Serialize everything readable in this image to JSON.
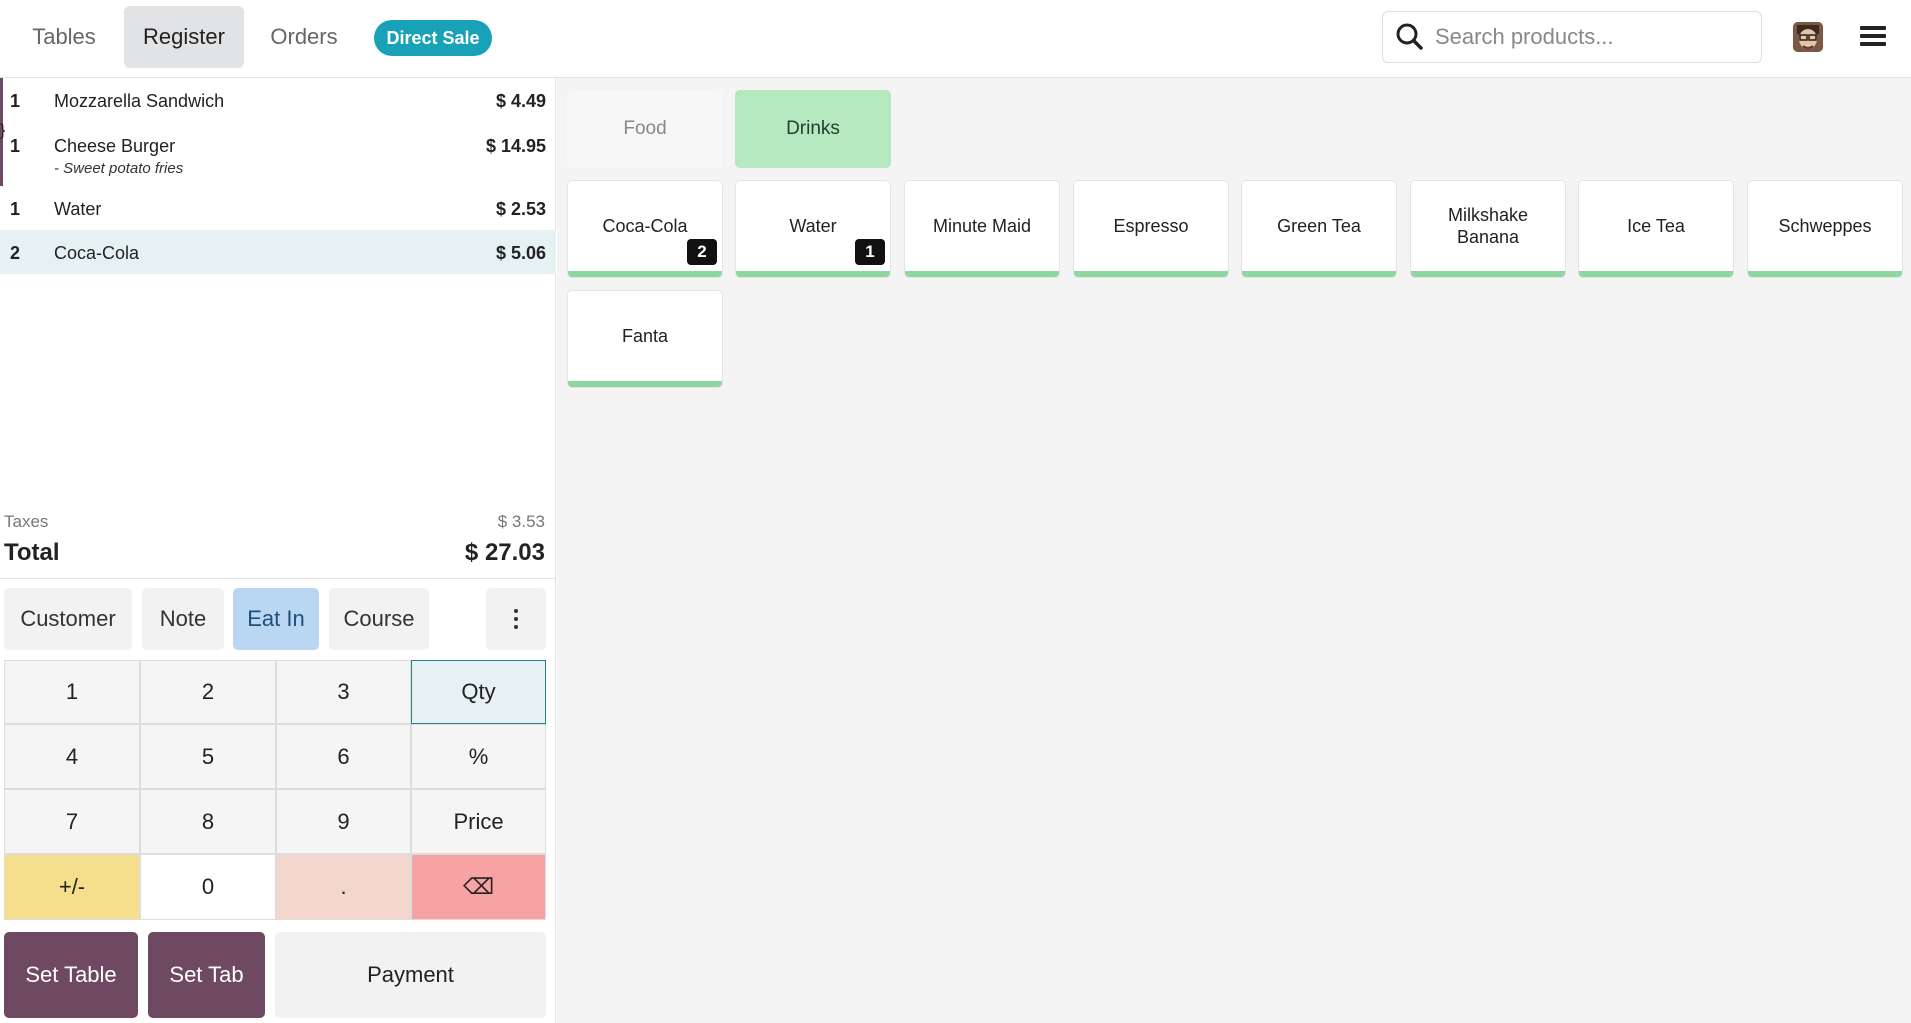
{
  "header": {
    "tabs": [
      {
        "label": "Tables"
      },
      {
        "label": "Register"
      },
      {
        "label": "Orders"
      }
    ],
    "direct_sale": "Direct Sale",
    "search_placeholder": "Search products...",
    "icons": {
      "search": "search-icon",
      "avatar": "avatar",
      "menu": "hamburger-menu-icon"
    }
  },
  "order": {
    "lines": [
      {
        "qty": "1",
        "name": "Mozzarella Sandwich",
        "price": "$ 4.49",
        "note": ""
      },
      {
        "qty": "1",
        "name": "Cheese Burger",
        "price": "$ 14.95",
        "note": "- Sweet potato fries"
      },
      {
        "qty": "1",
        "name": "Water",
        "price": "$ 2.53",
        "note": ""
      },
      {
        "qty": "2",
        "name": "Coca-Cola",
        "price": "$ 5.06",
        "note": ""
      }
    ],
    "taxes_label": "Taxes",
    "taxes_value": "$ 3.53",
    "total_label": "Total",
    "total_value": "$ 27.03"
  },
  "controls": {
    "customer": "Customer",
    "note": "Note",
    "eat_in": "Eat In",
    "course": "Course"
  },
  "numpad": {
    "keys": [
      "1",
      "2",
      "3",
      "Qty",
      "4",
      "5",
      "6",
      "%",
      "7",
      "8",
      "9",
      "Price",
      "+/-",
      "0",
      ".",
      "⌫"
    ]
  },
  "actions": {
    "set_table": "Set Table",
    "set_tab": "Set Tab",
    "payment": "Payment"
  },
  "categories": [
    {
      "label": "Food"
    },
    {
      "label": "Drinks"
    }
  ],
  "products": [
    {
      "name": "Coca-Cola",
      "badge": "2"
    },
    {
      "name": "Water",
      "badge": "1"
    },
    {
      "name": "Minute Maid",
      "badge": ""
    },
    {
      "name": "Espresso",
      "badge": ""
    },
    {
      "name": "Green Tea",
      "badge": ""
    },
    {
      "name": "Milkshake Banana",
      "badge": ""
    },
    {
      "name": "Ice Tea",
      "badge": ""
    },
    {
      "name": "Schweppes",
      "badge": ""
    },
    {
      "name": "Fanta",
      "badge": ""
    }
  ],
  "colors": {
    "accent_purple": "#6f4861",
    "direct_sale_teal": "#17a2b8",
    "drinks_green": "#b5e8bf",
    "product_bar": "#8fd7a0",
    "eat_in_blue": "#b9d6f2"
  }
}
